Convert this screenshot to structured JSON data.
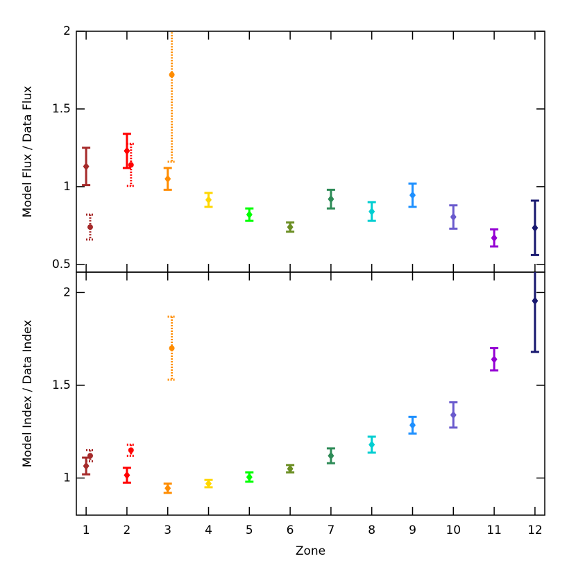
{
  "chart_data": [
    {
      "type": "scatter",
      "ylabel": "Model Flux / Data Flux",
      "xlim": [
        0.76,
        12.24
      ],
      "xticks": [
        1,
        2,
        3,
        4,
        5,
        6,
        7,
        8,
        9,
        10,
        11,
        12
      ],
      "ylim": [
        0.45,
        2
      ],
      "yticks": [
        0.5,
        1,
        1.5,
        2
      ],
      "series": [
        {
          "marker": "diamond",
          "line": "solid",
          "x": [
            1,
            2,
            3,
            4,
            5,
            6,
            7,
            8,
            9,
            10,
            11,
            12
          ],
          "values": [
            1.13,
            1.23,
            1.05,
            0.915,
            0.82,
            0.74,
            0.92,
            0.84,
            0.945,
            0.805,
            0.67,
            0.735
          ],
          "errors": [
            0.12,
            0.11,
            0.07,
            0.045,
            0.04,
            0.03,
            0.06,
            0.06,
            0.075,
            0.075,
            0.055,
            0.175
          ],
          "colors": [
            "#a52a2a",
            "#ff0000",
            "#ff8c00",
            "#ffd700",
            "#00ff00",
            "#6b8e23",
            "#2e8b57",
            "#00ced1",
            "#1e90ff",
            "#6a5acd",
            "#9400d3",
            "#191970"
          ]
        },
        {
          "marker": "circle",
          "line": "dotted",
          "x": [
            1.1,
            2.1,
            3.1
          ],
          "values": [
            0.74,
            1.14,
            1.72
          ],
          "errors": [
            0.08,
            0.135,
            0.56
          ],
          "colors": [
            "#a52a2a",
            "#ff0000",
            "#ff8c00"
          ]
        }
      ]
    },
    {
      "type": "scatter",
      "ylabel": "Model Index / Data Index",
      "xlabel": "Zone",
      "xlim": [
        0.76,
        12.24
      ],
      "xticks": [
        1,
        2,
        3,
        4,
        5,
        6,
        7,
        8,
        9,
        10,
        11,
        12
      ],
      "ylim": [
        0.8,
        2.11
      ],
      "yticks": [
        1,
        1.5,
        2
      ],
      "series": [
        {
          "marker": "diamond",
          "line": "solid",
          "x": [
            1,
            2,
            3,
            4,
            5,
            6,
            7,
            8,
            9,
            10,
            11,
            12
          ],
          "values": [
            1.065,
            1.015,
            0.945,
            0.97,
            1.005,
            1.05,
            1.12,
            1.18,
            1.285,
            1.34,
            1.64,
            1.955
          ],
          "errors": [
            0.045,
            0.04,
            0.025,
            0.02,
            0.025,
            0.02,
            0.04,
            0.043,
            0.045,
            0.068,
            0.06,
            0.275
          ],
          "colors": [
            "#a52a2a",
            "#ff0000",
            "#ff8c00",
            "#ffd700",
            "#00ff00",
            "#6b8e23",
            "#2e8b57",
            "#00ced1",
            "#1e90ff",
            "#6a5acd",
            "#9400d3",
            "#191970"
          ]
        },
        {
          "marker": "circle",
          "line": "dotted",
          "x": [
            1.1,
            2.1,
            3.1
          ],
          "values": [
            1.12,
            1.15,
            1.7
          ],
          "errors": [
            0.03,
            0.03,
            0.17
          ],
          "colors": [
            "#a52a2a",
            "#ff0000",
            "#ff8c00"
          ]
        }
      ]
    }
  ]
}
